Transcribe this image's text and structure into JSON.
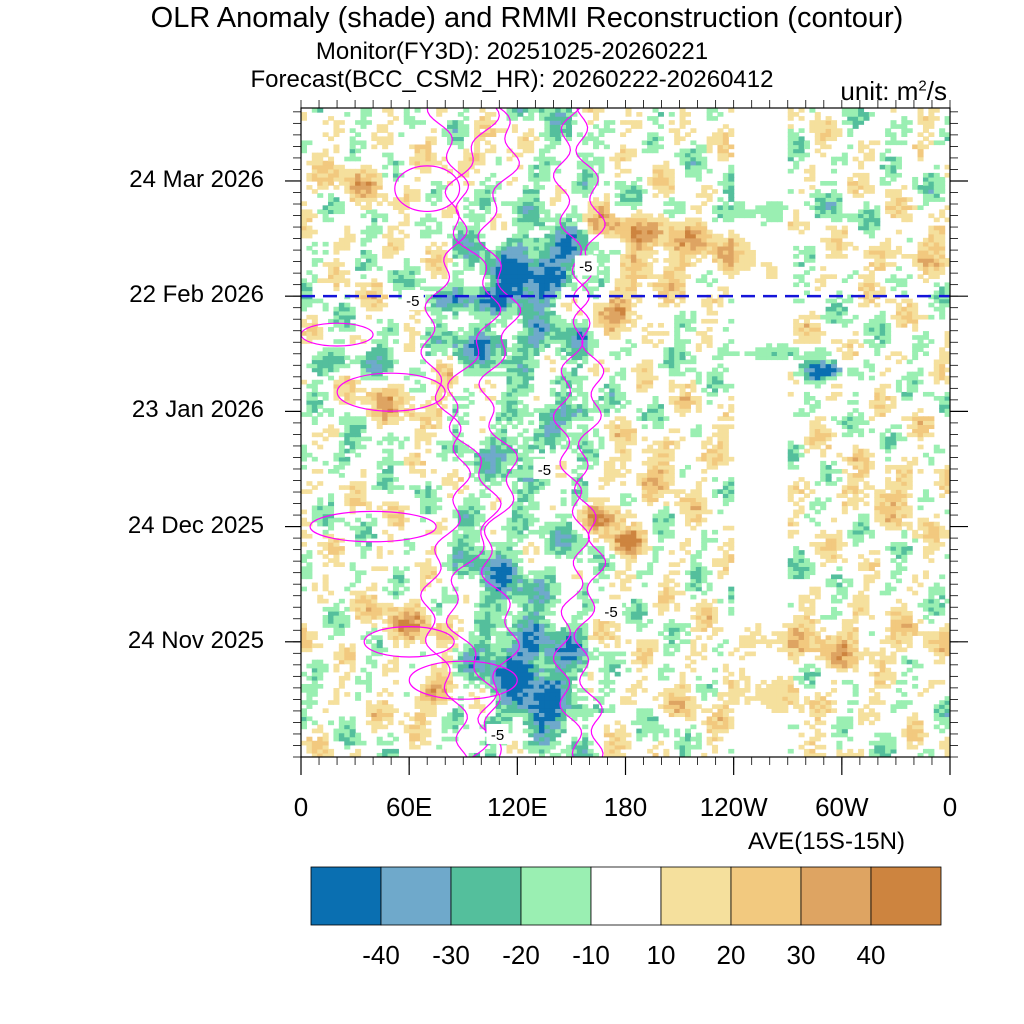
{
  "chart_data": {
    "type": "heatmap",
    "title": "OLR Anomaly (shade) and RMMI Reconstruction (contour)",
    "subtitle_monitor": "Monitor(FY3D): 20251025-20260221",
    "subtitle_forecast": "Forecast(BCC_CSM2_HR): 20260222-20260412",
    "unit_prefix": "unit: m",
    "unit_sup": "2",
    "unit_suffix": "/s",
    "xlabel": "AVE(15S-15N)",
    "x_ticks": [
      {
        "label": "0",
        "lon": 0
      },
      {
        "label": "60E",
        "lon": 60
      },
      {
        "label": "120E",
        "lon": 120
      },
      {
        "label": "180",
        "lon": 180
      },
      {
        "label": "120W",
        "lon": 240
      },
      {
        "label": "60W",
        "lon": 300
      },
      {
        "label": "0",
        "lon": 360
      }
    ],
    "x_range": [
      0,
      360
    ],
    "y_ticks": [
      {
        "label": "24 Mar 2026",
        "day": 150
      },
      {
        "label": "22 Feb 2026",
        "day": 120
      },
      {
        "label": "23 Jan 2026",
        "day": 90
      },
      {
        "label": "24 Dec 2025",
        "day": 60
      },
      {
        "label": "24 Nov 2025",
        "day": 30
      }
    ],
    "y_range_days_since_20251025": [
      0,
      169
    ],
    "forecast_start_day": 120,
    "contour_labels": [
      {
        "text": "-5",
        "lon": 158,
        "day": 128
      },
      {
        "text": "-5",
        "lon": 62,
        "day": 119
      },
      {
        "text": "-5",
        "lon": 135,
        "day": 75
      },
      {
        "text": "-5",
        "lon": 172,
        "day": 38
      },
      {
        "text": "-5",
        "lon": 109,
        "day": 6
      }
    ],
    "colorbar": {
      "levels": [
        "-40",
        "-30",
        "-20",
        "-10",
        "10",
        "20",
        "30",
        "40"
      ],
      "colors": [
        "#0a6fb1",
        "#6fa9cb",
        "#54bf9c",
        "#9aefb2",
        "#ffffff",
        "#f5e09d",
        "#f2c97f",
        "#dea462",
        "#cd843f"
      ]
    },
    "anomaly_blobs": [
      {
        "lon": 125,
        "day": 125,
        "val": -45,
        "w": 22,
        "h": 5
      },
      {
        "lon": 145,
        "day": 133,
        "val": -35,
        "w": 30,
        "h": 4
      },
      {
        "lon": 100,
        "day": 119,
        "val": -30,
        "w": 30,
        "h": 3
      },
      {
        "lon": 155,
        "day": 90,
        "val": -40,
        "w": 12,
        "h": 3
      },
      {
        "lon": 120,
        "day": 80,
        "val": -30,
        "w": 12,
        "h": 4
      },
      {
        "lon": 125,
        "day": 25,
        "val": -40,
        "w": 25,
        "h": 8
      },
      {
        "lon": 135,
        "day": 13,
        "val": -35,
        "w": 20,
        "h": 6
      },
      {
        "lon": 110,
        "day": 45,
        "val": -20,
        "w": 25,
        "h": 10
      },
      {
        "lon": 115,
        "day": 108,
        "val": -25,
        "w": 40,
        "h": 4
      },
      {
        "lon": 285,
        "day": 100,
        "val": -25,
        "w": 12,
        "h": 2
      },
      {
        "lon": 295,
        "day": 101,
        "val": -30,
        "w": 10,
        "h": 2
      },
      {
        "lon": 245,
        "day": 105,
        "val": -15,
        "w": 40,
        "h": 2
      },
      {
        "lon": 250,
        "day": 142,
        "val": -15,
        "w": 50,
        "h": 4
      },
      {
        "lon": 20,
        "day": 80,
        "val": -15,
        "w": 30,
        "h": 4
      },
      {
        "lon": 30,
        "day": 103,
        "val": -20,
        "w": 40,
        "h": 4
      },
      {
        "lon": 190,
        "day": 137,
        "val": 30,
        "w": 40,
        "h": 5
      },
      {
        "lon": 180,
        "day": 118,
        "val": 35,
        "w": 15,
        "h": 5
      },
      {
        "lon": 170,
        "day": 63,
        "val": 35,
        "w": 15,
        "h": 3
      },
      {
        "lon": 180,
        "day": 56,
        "val": 40,
        "w": 10,
        "h": 3
      },
      {
        "lon": 105,
        "day": 158,
        "val": 30,
        "w": 15,
        "h": 6
      },
      {
        "lon": 70,
        "day": 35,
        "val": 25,
        "w": 30,
        "h": 6
      },
      {
        "lon": 70,
        "day": 15,
        "val": 30,
        "w": 15,
        "h": 5
      },
      {
        "lon": 60,
        "day": 93,
        "val": 20,
        "w": 30,
        "h": 6
      },
      {
        "lon": 220,
        "day": 130,
        "val": 20,
        "w": 40,
        "h": 6
      },
      {
        "lon": 300,
        "day": 30,
        "val": 20,
        "w": 60,
        "h": 6
      },
      {
        "lon": 330,
        "day": 70,
        "val": 15,
        "w": 30,
        "h": 8
      },
      {
        "lon": 200,
        "day": 75,
        "val": 15,
        "w": 30,
        "h": 8
      },
      {
        "lon": 30,
        "day": 150,
        "val": 15,
        "w": 40,
        "h": 5
      },
      {
        "lon": 250,
        "day": 15,
        "val": 15,
        "w": 50,
        "h": 5
      },
      {
        "lon": 340,
        "day": 130,
        "val": 15,
        "w": 30,
        "h": 6
      }
    ]
  }
}
